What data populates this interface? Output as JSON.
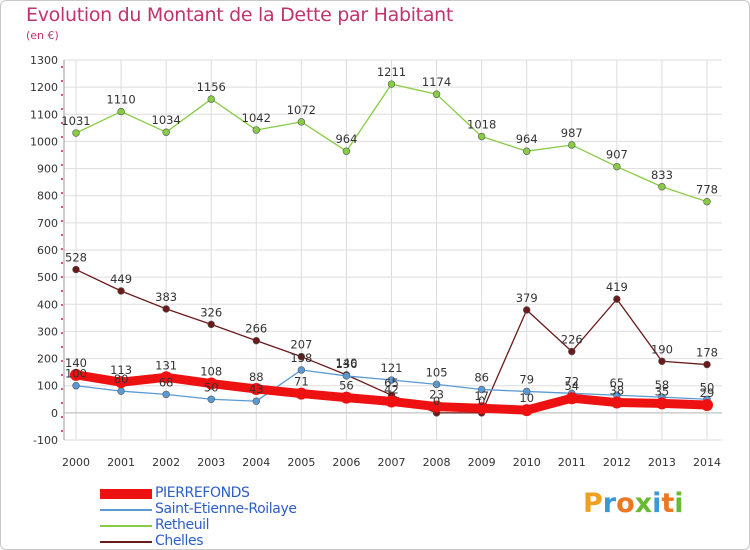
{
  "header": {
    "title": "Evolution du Montant de la Dette par Habitant",
    "subtitle": "(en €)"
  },
  "colors": {
    "title": "#c0336e",
    "axis_text": "#333333",
    "grid": "#dddddd",
    "legend_text": "#2c5ec8"
  },
  "chart_data": {
    "type": "line",
    "x": [
      "2000",
      "2001",
      "2002",
      "2003",
      "2004",
      "2005",
      "2006",
      "2007",
      "2008",
      "2009",
      "2010",
      "2011",
      "2012",
      "2013",
      "2014"
    ],
    "ylim": [
      -100,
      1300
    ],
    "yticks": [
      -100,
      0,
      100,
      200,
      300,
      400,
      500,
      600,
      700,
      800,
      900,
      1000,
      1100,
      1200,
      1300
    ],
    "grid": true,
    "legend_position": "bottom-left",
    "series": [
      {
        "name": "PIERREFONDS",
        "color": "#ee1111",
        "values": [
          140,
          113,
          131,
          108,
          88,
          71,
          56,
          42,
          23,
          17,
          10,
          54,
          38,
          35,
          29
        ],
        "labels": [
          "140",
          "113",
          "131",
          "108",
          "88",
          "71",
          "56",
          "42",
          "23",
          "17",
          "10",
          "54",
          "38",
          "35",
          "29"
        ]
      },
      {
        "name": "Saint-Etienne-Roilaye",
        "color": "#5a9ad4",
        "values": [
          100,
          80,
          68,
          50,
          43,
          158,
          136,
          121,
          105,
          86,
          79,
          72,
          65,
          58,
          50
        ],
        "labels": [
          "100",
          "80",
          "68",
          "50",
          "43",
          "158",
          "136",
          "121",
          "105",
          "86",
          "79",
          "72",
          "65",
          "58",
          "50"
        ]
      },
      {
        "name": "Retheuil",
        "color": "#88cc44",
        "values": [
          1031,
          1110,
          1034,
          1156,
          1042,
          1072,
          964,
          1211,
          1174,
          1018,
          964,
          987,
          907,
          833,
          778
        ],
        "labels": [
          "1031",
          "1110",
          "1034",
          "1156",
          "1042",
          "1072",
          "964",
          "1211",
          "1174",
          "1018",
          "964",
          "987",
          "907",
          "833",
          "778"
        ]
      },
      {
        "name": "Chelles",
        "color": "#6b1a1a",
        "values": [
          528,
          449,
          383,
          326,
          266,
          207,
          140,
          65,
          0,
          0,
          379,
          226,
          419,
          190,
          178
        ],
        "labels": [
          "528",
          "449",
          "383",
          "326",
          "266",
          "207",
          "140",
          "65",
          "0",
          "0",
          "379",
          "226",
          "419",
          "190",
          "178"
        ]
      }
    ]
  },
  "logo": {
    "letters": [
      "P",
      "r",
      "o",
      "x",
      "i",
      "t",
      "i"
    ],
    "colors": [
      "#f0a020",
      "#3a9ad9",
      "#ee7722",
      "#66bb33",
      "#3a9ad9",
      "#ee7722",
      "#66bb33"
    ]
  }
}
